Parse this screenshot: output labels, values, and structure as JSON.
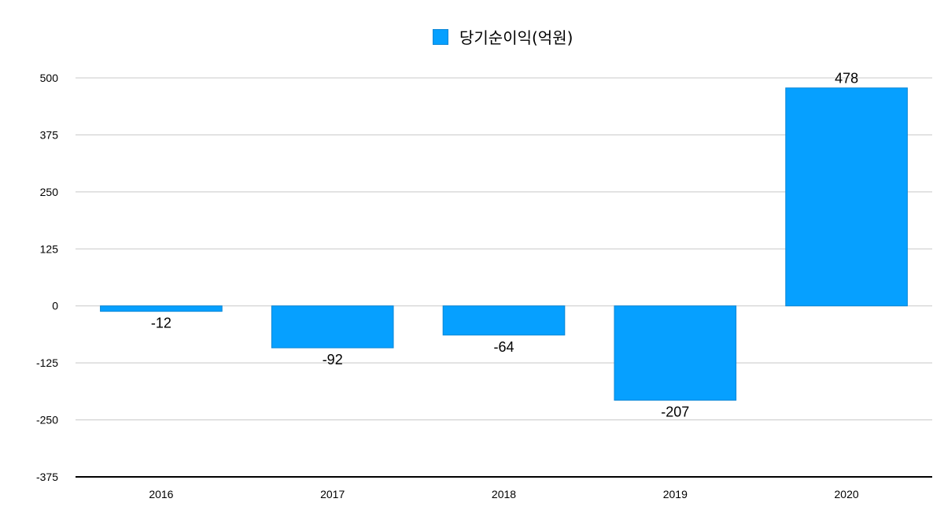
{
  "chart_data": {
    "type": "bar",
    "categories": [
      "2016",
      "2017",
      "2018",
      "2019",
      "2020"
    ],
    "series": [
      {
        "name": "당기순이익(억원)",
        "values": [
          -12,
          -92,
          -64,
          -207,
          478
        ]
      }
    ],
    "data_labels": [
      "-12",
      "-92",
      "-64",
      "-207",
      "478"
    ],
    "y_ticks": [
      500,
      375,
      250,
      125,
      0,
      -125,
      -250,
      -375
    ],
    "y_tick_labels": [
      "500",
      "375",
      "250",
      "125",
      "0",
      "-125",
      "-250",
      "-375"
    ],
    "ylim": [
      -375,
      500
    ],
    "grid": true,
    "legend_position": "top-center",
    "title": "",
    "xlabel": "",
    "ylabel": ""
  },
  "colors": {
    "bar_fill": "#06a0ff",
    "bar_stroke": "#0a86d6",
    "grid": "#c8c8c8",
    "axis": "#000000"
  }
}
